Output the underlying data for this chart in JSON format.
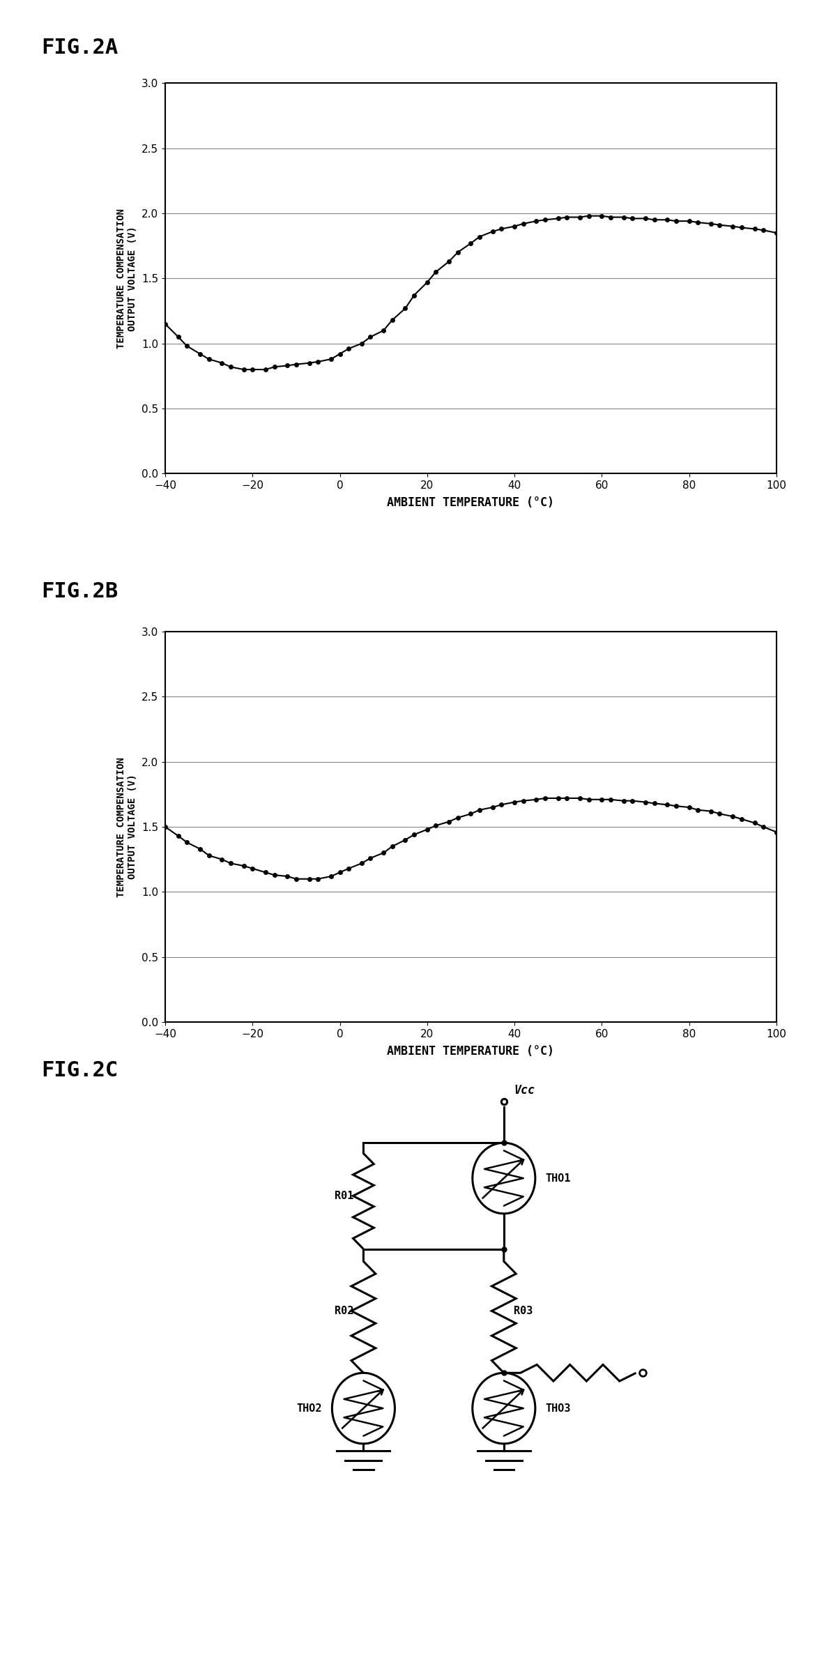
{
  "fig2a_title": "FIG.2A",
  "fig2b_title": "FIG.2B",
  "fig2c_title": "FIG.2C",
  "xlabel": "AMBIENT TEMPERATURE (°C)",
  "ylabel_line1": "TEMPERATURE COMPENSATION",
  "ylabel_line2": "OUTPUT VOLTAGE (V)",
  "xlim": [
    -40,
    100
  ],
  "ylim": [
    0,
    3.0
  ],
  "yticks": [
    0,
    0.5,
    1.0,
    1.5,
    2.0,
    2.5,
    3.0
  ],
  "xticks": [
    -40,
    -20,
    0,
    20,
    40,
    60,
    80,
    100
  ],
  "fig2a_x": [
    -40,
    -37,
    -35,
    -32,
    -30,
    -27,
    -25,
    -22,
    -20,
    -17,
    -15,
    -12,
    -10,
    -7,
    -5,
    -2,
    0,
    2,
    5,
    7,
    10,
    12,
    15,
    17,
    20,
    22,
    25,
    27,
    30,
    32,
    35,
    37,
    40,
    42,
    45,
    47,
    50,
    52,
    55,
    57,
    60,
    62,
    65,
    67,
    70,
    72,
    75,
    77,
    80,
    82,
    85,
    87,
    90,
    92,
    95,
    97,
    100
  ],
  "fig2a_y": [
    1.15,
    1.05,
    0.98,
    0.92,
    0.88,
    0.85,
    0.82,
    0.8,
    0.8,
    0.8,
    0.82,
    0.83,
    0.84,
    0.85,
    0.86,
    0.88,
    0.92,
    0.96,
    1.0,
    1.05,
    1.1,
    1.18,
    1.27,
    1.37,
    1.47,
    1.55,
    1.63,
    1.7,
    1.77,
    1.82,
    1.86,
    1.88,
    1.9,
    1.92,
    1.94,
    1.95,
    1.96,
    1.97,
    1.97,
    1.98,
    1.98,
    1.97,
    1.97,
    1.96,
    1.96,
    1.95,
    1.95,
    1.94,
    1.94,
    1.93,
    1.92,
    1.91,
    1.9,
    1.89,
    1.88,
    1.87,
    1.85
  ],
  "fig2b_x": [
    -40,
    -37,
    -35,
    -32,
    -30,
    -27,
    -25,
    -22,
    -20,
    -17,
    -15,
    -12,
    -10,
    -7,
    -5,
    -2,
    0,
    2,
    5,
    7,
    10,
    12,
    15,
    17,
    20,
    22,
    25,
    27,
    30,
    32,
    35,
    37,
    40,
    42,
    45,
    47,
    50,
    52,
    55,
    57,
    60,
    62,
    65,
    67,
    70,
    72,
    75,
    77,
    80,
    82,
    85,
    87,
    90,
    92,
    95,
    97,
    100
  ],
  "fig2b_y": [
    1.5,
    1.43,
    1.38,
    1.33,
    1.28,
    1.25,
    1.22,
    1.2,
    1.18,
    1.15,
    1.13,
    1.12,
    1.1,
    1.1,
    1.1,
    1.12,
    1.15,
    1.18,
    1.22,
    1.26,
    1.3,
    1.35,
    1.4,
    1.44,
    1.48,
    1.51,
    1.54,
    1.57,
    1.6,
    1.63,
    1.65,
    1.67,
    1.69,
    1.7,
    1.71,
    1.72,
    1.72,
    1.72,
    1.72,
    1.71,
    1.71,
    1.71,
    1.7,
    1.7,
    1.69,
    1.68,
    1.67,
    1.66,
    1.65,
    1.63,
    1.62,
    1.6,
    1.58,
    1.56,
    1.53,
    1.5,
    1.46
  ],
  "line_color": "#000000",
  "marker": "o",
  "marker_size": 4,
  "bg_color": "#ffffff",
  "font_color": "#000000"
}
